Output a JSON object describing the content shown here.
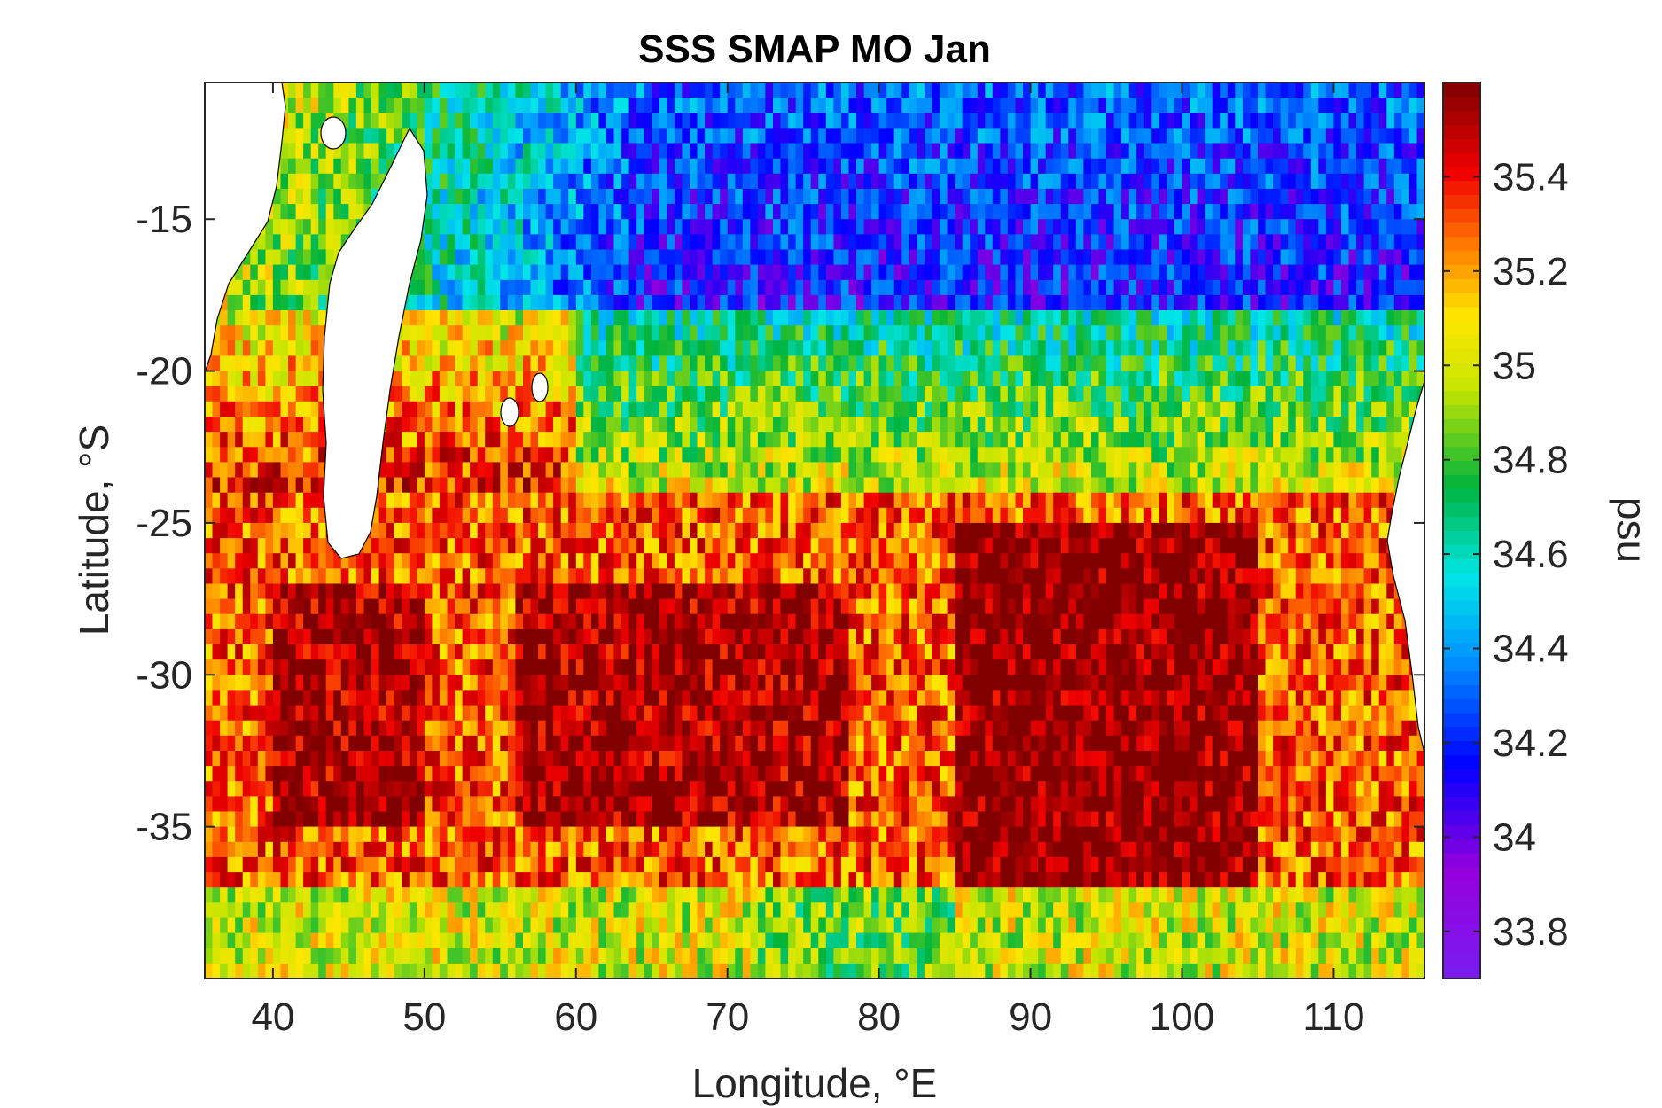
{
  "chart_data": {
    "type": "heatmap",
    "title": "SSS SMAP MO Jan",
    "xlabel": "Longitude, °E",
    "ylabel": "Latitude, °S",
    "colorbar_label": "psu",
    "xlim": [
      35.5,
      116
    ],
    "ylim": [
      -40,
      -10.5
    ],
    "x_ticks": [
      40,
      50,
      60,
      70,
      80,
      90,
      100,
      110
    ],
    "x_tick_labels": [
      "40",
      "50",
      "60",
      "70",
      "80",
      "90",
      "100",
      "110"
    ],
    "y_ticks": [
      -15,
      -20,
      -25,
      -30,
      -35
    ],
    "y_tick_labels": [
      "-15",
      "-20",
      "-25",
      "-30",
      "-35"
    ],
    "clim": [
      33.7,
      35.6
    ],
    "colorbar_ticks": [
      33.8,
      34,
      34.2,
      34.4,
      34.6,
      34.8,
      35,
      35.2,
      35.4
    ],
    "colorbar_tick_labels": [
      "33.8",
      "34",
      "34.2",
      "34.4",
      "34.6",
      "34.8",
      "35",
      "35.2",
      "35.4"
    ],
    "colormap": "jet-like (purple → blue → cyan → green → yellow → red → dark red)",
    "grid": false,
    "field_summary": [
      {
        "region": "north-central and north-east (approx. 62–110°E, 10.5–18°S)",
        "value_range_psu": [
          33.9,
          34.5
        ]
      },
      {
        "region": "band around 18–24°S",
        "value_range_psu": [
          34.6,
          35.0
        ]
      },
      {
        "region": "subtropical core (approx. 85–105°E, 25–36°S)",
        "value_range_psu": [
          35.6,
          35.6
        ]
      },
      {
        "region": "subtropical belt (approx. 40–110°E, 25–38°S)",
        "value_range_psu": [
          35.2,
          35.6
        ]
      },
      {
        "region": "far south (approx. 38–40°S)",
        "value_range_psu": [
          34.8,
          35.2
        ]
      }
    ]
  }
}
